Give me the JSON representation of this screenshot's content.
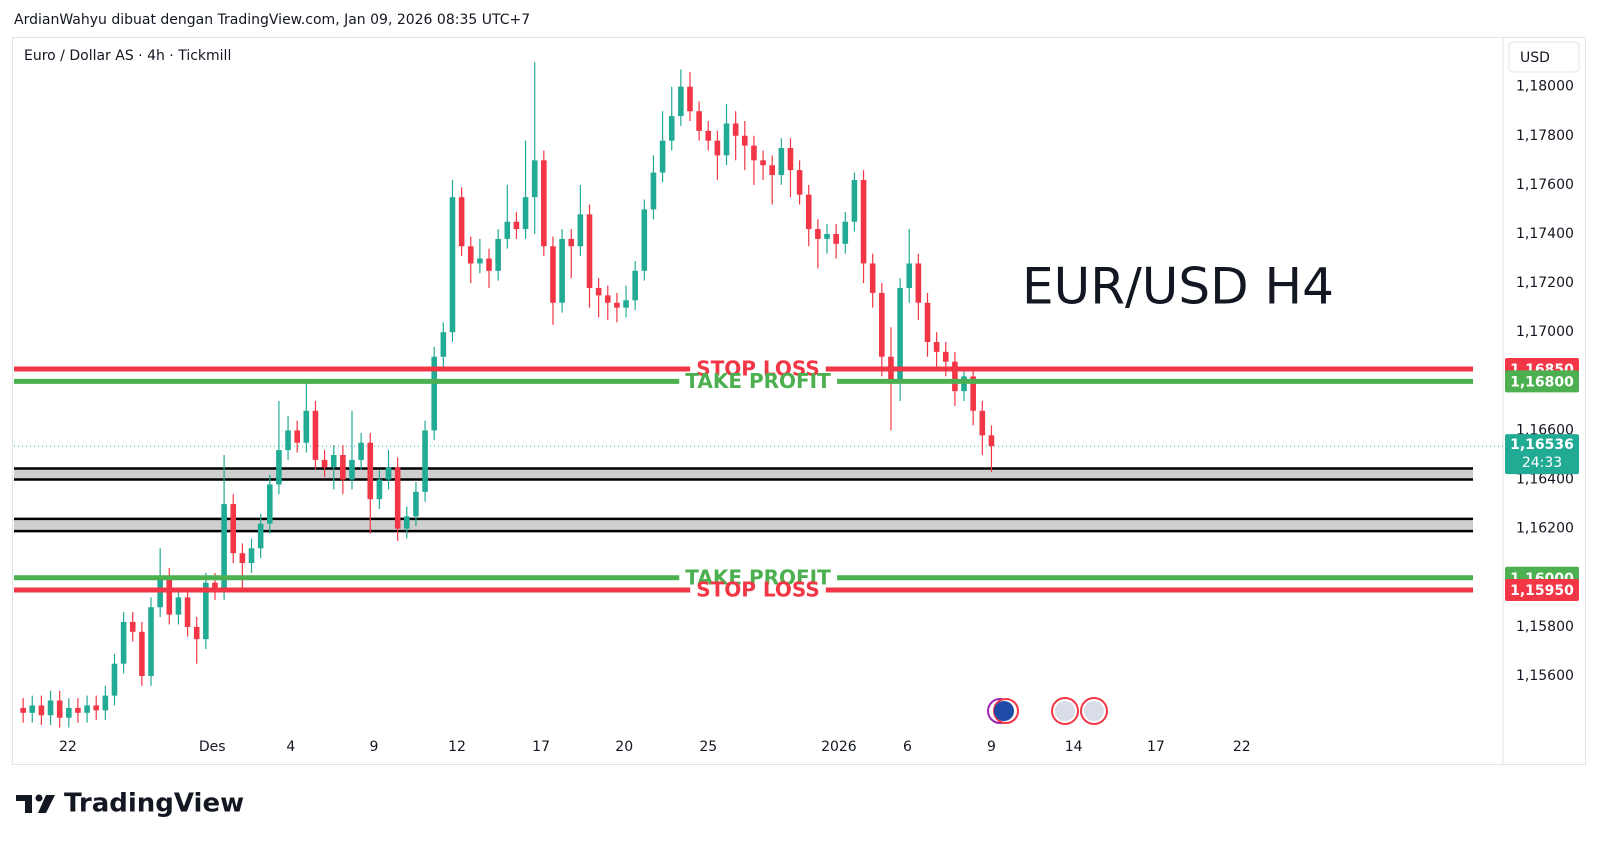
{
  "header": "ArdianWahyu dibuat dengan TradingView.com, Jan 09, 2026 08:35 UTC+7",
  "brand": "TradingView",
  "chart_data": {
    "type": "candlestick",
    "symbol": "Euro / Dollar AS · 4h · Tickmill",
    "currency": "USD",
    "annotation": "EUR/USD H4",
    "up_color": "#22ab94",
    "down_color": "#f23645",
    "xlim": [
      -1,
      162
    ],
    "xticks": [
      {
        "value": 4.9,
        "label": "22"
      },
      {
        "value": 20.7,
        "label": "Des"
      },
      {
        "value": 29.3,
        "label": "4"
      },
      {
        "value": 38.4,
        "label": "9"
      },
      {
        "value": 47.5,
        "label": "12"
      },
      {
        "value": 56.7,
        "label": "17"
      },
      {
        "value": 65.8,
        "label": "20"
      },
      {
        "value": 75,
        "label": "25"
      },
      {
        "value": 89.3,
        "label": "2026"
      },
      {
        "value": 96.8,
        "label": "6"
      },
      {
        "value": 106,
        "label": "9"
      },
      {
        "value": 115,
        "label": "14"
      },
      {
        "value": 124,
        "label": "17"
      },
      {
        "value": 133.4,
        "label": "22"
      }
    ],
    "ylim": [
      1.1538,
      1.1819
    ],
    "yticks": [
      {
        "value": 1.156,
        "label": "1,15600"
      },
      {
        "value": 1.158,
        "label": "1,15800"
      },
      {
        "value": 1.162,
        "label": "1,16200"
      },
      {
        "value": 1.164,
        "label": "1,16400"
      },
      {
        "value": 1.166,
        "label": "1,16600"
      },
      {
        "value": 1.17,
        "label": "1,17000"
      },
      {
        "value": 1.172,
        "label": "1,17200"
      },
      {
        "value": 1.174,
        "label": "1,17400"
      },
      {
        "value": 1.176,
        "label": "1,17600"
      },
      {
        "value": 1.178,
        "label": "1,17800"
      },
      {
        "value": 1.18,
        "label": "1,18000"
      }
    ],
    "levels": [
      {
        "name": "STOP LOSS",
        "value": 1.1685,
        "label": "1,16850",
        "color": "#f23645"
      },
      {
        "name": "TAKE PROFIT",
        "value": 1.168,
        "label": "1,16800",
        "color": "#4caf50"
      },
      {
        "name": "TAKE PROFIT",
        "value": 1.16,
        "label": "1,16000",
        "color": "#4caf50"
      },
      {
        "name": "STOP LOSS",
        "value": 1.1595,
        "label": "1,15950",
        "color": "#f23645"
      }
    ],
    "zones": [
      [
        1.164,
        1.16445
      ],
      [
        1.1619,
        1.1624
      ]
    ],
    "last_price": {
      "value": 1.16536,
      "label": "1,16536",
      "countdown": "24:33",
      "color": "#22ab94"
    },
    "open": [
      1.1547,
      1.1545,
      1.1548,
      1.1544,
      1.155,
      1.1543,
      1.1547,
      1.1545,
      1.1548,
      1.1546,
      1.1552,
      1.1565,
      1.1582,
      1.1578,
      1.156,
      1.1588,
      1.16,
      1.1585,
      1.1592,
      1.158,
      1.1575,
      1.1598,
      1.1595,
      1.163,
      1.161,
      1.1606,
      1.1612,
      1.1622,
      1.1638,
      1.1652,
      1.166,
      1.1655,
      1.1668,
      1.1648,
      1.1645,
      1.165,
      1.164,
      1.1648,
      1.1655,
      1.1632,
      1.164,
      1.1645,
      1.162,
      1.1625,
      1.1635,
      1.166,
      1.169,
      1.17,
      1.1755,
      1.1735,
      1.1728,
      1.173,
      1.1725,
      1.1738,
      1.1745,
      1.1742,
      1.1755,
      1.177,
      1.1735,
      1.1712,
      1.1738,
      1.1735,
      1.1748,
      1.1718,
      1.1715,
      1.1712,
      1.171,
      1.1713,
      1.1725,
      1.175,
      1.1765,
      1.1778,
      1.1788,
      1.18,
      1.179,
      1.1782,
      1.1778,
      1.1772,
      1.1785,
      1.178,
      1.1776,
      1.177,
      1.1768,
      1.1764,
      1.1775,
      1.1766,
      1.1756,
      1.1742,
      1.1738,
      1.174,
      1.1736,
      1.1745,
      1.1762,
      1.1728,
      1.1716,
      1.169,
      1.168,
      1.1718,
      1.1728,
      1.1712,
      1.1696,
      1.1692,
      1.1688,
      1.1676,
      1.1682,
      1.1668,
      1.1658
    ],
    "high": [
      1.1551,
      1.1552,
      1.1552,
      1.1554,
      1.1554,
      1.1551,
      1.1551,
      1.1552,
      1.1552,
      1.1556,
      1.1569,
      1.1586,
      1.1586,
      1.1582,
      1.1592,
      1.1612,
      1.1604,
      1.1596,
      1.1596,
      1.1584,
      1.1602,
      1.1602,
      1.165,
      1.1634,
      1.1614,
      1.1616,
      1.1626,
      1.1642,
      1.1672,
      1.1666,
      1.1664,
      1.168,
      1.1672,
      1.1652,
      1.1654,
      1.1654,
      1.1668,
      1.1659,
      1.1659,
      1.1644,
      1.1652,
      1.1649,
      1.1629,
      1.1639,
      1.1664,
      1.1694,
      1.1704,
      1.1762,
      1.1759,
      1.1739,
      1.1738,
      1.1734,
      1.1742,
      1.176,
      1.1749,
      1.1778,
      1.181,
      1.1774,
      1.1739,
      1.1742,
      1.1742,
      1.176,
      1.1752,
      1.1722,
      1.1719,
      1.1716,
      1.1719,
      1.1729,
      1.1754,
      1.1772,
      1.179,
      1.18,
      1.1807,
      1.1806,
      1.1794,
      1.1786,
      1.1782,
      1.1793,
      1.179,
      1.1786,
      1.178,
      1.1774,
      1.1772,
      1.1779,
      1.1779,
      1.177,
      1.176,
      1.1746,
      1.1744,
      1.1744,
      1.1749,
      1.1765,
      1.1766,
      1.1732,
      1.172,
      1.1702,
      1.1722,
      1.1742,
      1.1732,
      1.1716,
      1.17,
      1.1696,
      1.1692,
      1.1686,
      1.1686,
      1.1672,
      1.1662
    ],
    "low": [
      1.1541,
      1.1541,
      1.154,
      1.154,
      1.1539,
      1.1539,
      1.1541,
      1.1541,
      1.1542,
      1.1542,
      1.1548,
      1.1561,
      1.1574,
      1.1556,
      1.1556,
      1.1584,
      1.1581,
      1.1581,
      1.1576,
      1.1565,
      1.1571,
      1.1591,
      1.1591,
      1.1606,
      1.1595,
      1.1602,
      1.1608,
      1.1618,
      1.1634,
      1.1648,
      1.1651,
      1.1651,
      1.1644,
      1.1641,
      1.1636,
      1.1634,
      1.1636,
      1.1644,
      1.1618,
      1.1628,
      1.1636,
      1.1615,
      1.1616,
      1.1621,
      1.1631,
      1.1656,
      1.1686,
      1.1696,
      1.1731,
      1.172,
      1.1724,
      1.1718,
      1.1721,
      1.1734,
      1.1738,
      1.1738,
      1.174,
      1.1731,
      1.1703,
      1.1708,
      1.1722,
      1.1731,
      1.171,
      1.1706,
      1.1705,
      1.1704,
      1.1706,
      1.1709,
      1.1721,
      1.1746,
      1.1761,
      1.1774,
      1.1784,
      1.1786,
      1.1778,
      1.1774,
      1.1762,
      1.1768,
      1.177,
      1.1766,
      1.176,
      1.1762,
      1.1752,
      1.176,
      1.1755,
      1.1752,
      1.1735,
      1.1726,
      1.1732,
      1.173,
      1.1732,
      1.1741,
      1.172,
      1.171,
      1.1682,
      1.166,
      1.1672,
      1.1712,
      1.1705,
      1.169,
      1.1686,
      1.1682,
      1.167,
      1.1672,
      1.1662,
      1.165,
      1.1643
    ],
    "close": [
      1.1545,
      1.1548,
      1.1544,
      1.155,
      1.1543,
      1.1547,
      1.1545,
      1.1548,
      1.1546,
      1.1552,
      1.1565,
      1.1582,
      1.1578,
      1.156,
      1.1588,
      1.16,
      1.1585,
      1.1592,
      1.158,
      1.1575,
      1.1598,
      1.1595,
      1.163,
      1.161,
      1.1606,
      1.1612,
      1.1622,
      1.1638,
      1.1652,
      1.166,
      1.1655,
      1.1668,
      1.1648,
      1.1645,
      1.165,
      1.164,
      1.1648,
      1.1655,
      1.1632,
      1.164,
      1.1645,
      1.162,
      1.1625,
      1.1635,
      1.166,
      1.169,
      1.17,
      1.1755,
      1.1735,
      1.1728,
      1.173,
      1.1725,
      1.1738,
      1.1745,
      1.1742,
      1.1755,
      1.177,
      1.1735,
      1.1712,
      1.1738,
      1.1735,
      1.1748,
      1.1718,
      1.1715,
      1.1712,
      1.171,
      1.1713,
      1.1725,
      1.175,
      1.1765,
      1.1778,
      1.1788,
      1.18,
      1.179,
      1.1782,
      1.1778,
      1.1772,
      1.1785,
      1.178,
      1.1776,
      1.177,
      1.1768,
      1.1764,
      1.1775,
      1.1766,
      1.1756,
      1.1742,
      1.1738,
      1.174,
      1.1736,
      1.1745,
      1.1762,
      1.1728,
      1.1716,
      1.169,
      1.168,
      1.1718,
      1.1728,
      1.1712,
      1.1696,
      1.1692,
      1.1688,
      1.1676,
      1.1682,
      1.1668,
      1.1658,
      1.16536
    ]
  }
}
